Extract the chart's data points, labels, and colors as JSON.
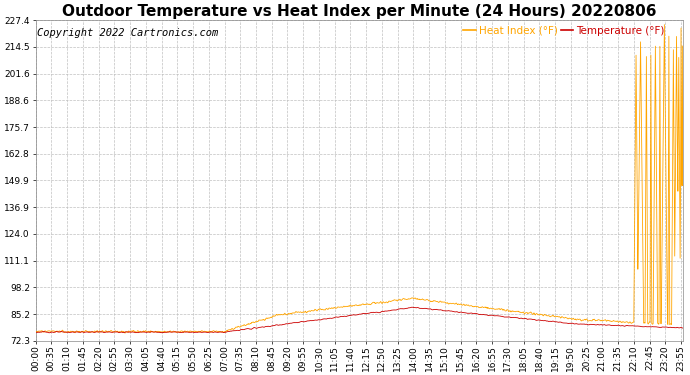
{
  "title": "Outdoor Temperature vs Heat Index per Minute (24 Hours) 20220806",
  "copyright": "Copyright 2022 Cartronics.com",
  "legend_heat": "Heat Index (°F)",
  "legend_temp": "Temperature (°F)",
  "heat_color": "#FFA500",
  "temp_color": "#CC0000",
  "background_color": "#ffffff",
  "grid_color": "#c0c0c0",
  "yticks": [
    72.3,
    85.2,
    98.2,
    111.1,
    124.0,
    136.9,
    149.9,
    162.8,
    175.7,
    188.6,
    201.6,
    214.5,
    227.4
  ],
  "ylim": [
    72.3,
    227.4
  ],
  "title_fontsize": 11,
  "copyright_fontsize": 7.5,
  "legend_fontsize": 7.5,
  "tick_fontsize": 6.5,
  "figwidth": 6.9,
  "figheight": 3.75,
  "dpi": 100
}
